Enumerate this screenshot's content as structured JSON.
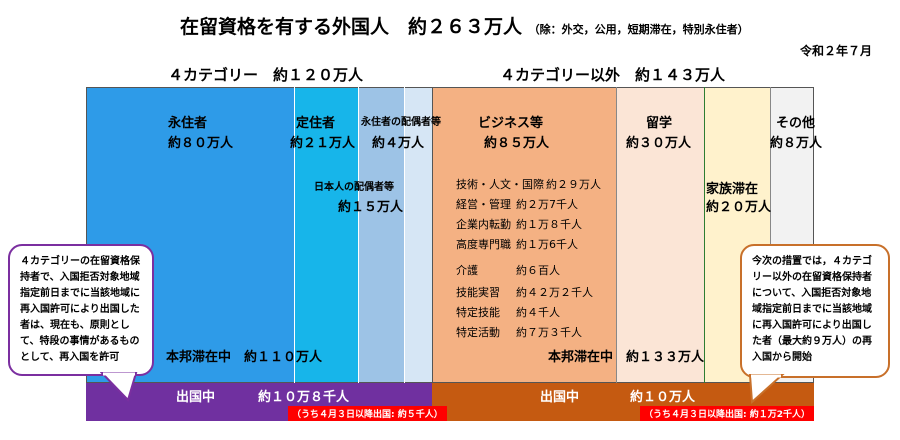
{
  "title": "在留資格を有する外国人　約２６３万人",
  "title_note": "（除：外交，公用，短期滞在，特別永住者）",
  "date": "令和２年７月",
  "left_category": "４カテゴリー　約１２０万人",
  "right_category": "４カテゴリー以外　約１４３万人",
  "segments": {
    "eijusha": {
      "name": "永住者",
      "value": "約８０万人"
    },
    "teijusha": {
      "name": "定住者",
      "value": "約２１万人"
    },
    "eiju_haigu": {
      "name": "永住者の配偶者等",
      "value": "約４万人"
    },
    "nihonjin_haigu": {
      "name": "日本人の配偶者等",
      "value": "約１５万人"
    },
    "business": {
      "name": "ビジネス等",
      "value": "約８５万人"
    },
    "ryugaku": {
      "name": "留学",
      "value": "約３０万人"
    },
    "kazoku": {
      "name": "家族滞在",
      "value": "約２０万人"
    },
    "sonota": {
      "name": "その他",
      "value": "約８万人"
    }
  },
  "business_items": [
    {
      "name": "技術・人文・国際",
      "value": "約２９万人"
    },
    {
      "name": "経営・管理",
      "value": "約２万7千人"
    },
    {
      "name": "企業内転勤",
      "value": "約１万８千人"
    },
    {
      "name": "高度専門職",
      "value": "約１万6千人"
    },
    {
      "name": "介護",
      "value": "約６百人"
    },
    {
      "name": "技能実習",
      "value": "約４２万２千人"
    },
    {
      "name": "特定技能",
      "value": "約４千人"
    },
    {
      "name": "特定活動",
      "value": "約７万３千人"
    }
  ],
  "left_in_japan": "本邦滞在中　約１１０万人",
  "right_in_japan_label": "本邦滞在中",
  "right_in_japan_value": "約１３３万人",
  "left_abroad_label": "出国中",
  "left_abroad_value": "約１０万８千人",
  "left_abroad_note": "（うち４月３日以降出国: 約５千人）",
  "right_abroad_label": "出国中",
  "right_abroad_value": "約１０万人",
  "right_abroad_note": "（うち４月３日以降出国: 約１万2千人）",
  "left_callout": "４カテゴリーの在留資格保持者で、入国拒否対象地域指定前日までに当該地域に再入国許可により出国した者は、現在も、原則として、特段の事情があるものとして、再入国を許可",
  "right_callout": "今次の措置では，４カテゴリー以外の在留資格保持者について、入国拒否対象地域指定前日までに当該地域に再入国許可により出国した者（最大約９万人）の再入国から開始",
  "colors": {
    "eijusha": "#2e9be8",
    "teijusha": "#17b5ea",
    "eiju_haigu": "#bdd7ee",
    "nihonjin_haigu": "#9dc3e6",
    "business": "#f4b183",
    "ryugaku": "#fbe5d6",
    "kazoku": "#fff2cc",
    "sonota": "#f2f2f2",
    "abroad_left": "#7030a0",
    "abroad_right": "#c55a11"
  }
}
